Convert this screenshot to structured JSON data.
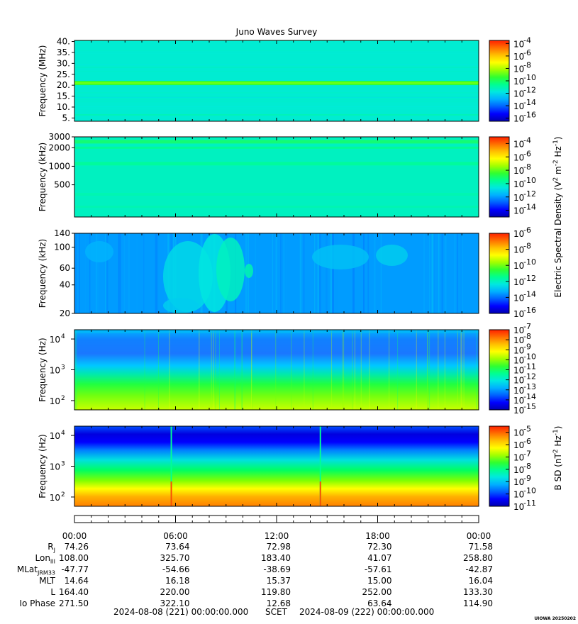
{
  "title": "Juno Waves Survey",
  "credit": "UIOWA 20250202",
  "colors": {
    "spectral": [
      "#0000b0",
      "#0000ff",
      "#0060ff",
      "#00b0ff",
      "#00e8e0",
      "#00ff90",
      "#30ff30",
      "#a0ff00",
      "#ffff00",
      "#ffc000",
      "#ff7000",
      "#ff2000"
    ]
  },
  "chart_data": [
    {
      "type": "heatmap",
      "ylabel": "Frequency (MHz)",
      "yscale": "linear",
      "ylim": [
        3.5,
        40.5
      ],
      "yticks": [
        "5.",
        "10.",
        "15.",
        "20.",
        "25.",
        "30.",
        "35.",
        "40."
      ],
      "ytick_values": [
        5,
        10,
        15,
        20,
        25,
        30,
        35,
        40
      ],
      "cbar_ticks": [
        "10-4",
        "10-6",
        "10-8",
        "10-10",
        "10-12",
        "10-14",
        "10-16"
      ],
      "cbar_exponents": [
        -4,
        -6,
        -8,
        -10,
        -12,
        -14,
        -16
      ],
      "cbar_range": [
        -16.5,
        -3.5
      ],
      "background_level": 0.38,
      "features": "narrow band near 21 MHz"
    },
    {
      "type": "heatmap",
      "ylabel": "Frequency (kHz)",
      "yscale": "log",
      "ylim": [
        150,
        3000
      ],
      "yticks": [
        "3000",
        "2000",
        "1000",
        "500"
      ],
      "ytick_values": [
        3000,
        2000,
        1000,
        500
      ],
      "cbar_ticks": [
        "10-4",
        "10-6",
        "10-8",
        "10-10",
        "10-12",
        "10-14"
      ],
      "cbar_exponents": [
        -4,
        -6,
        -8,
        -10,
        -12,
        -14
      ],
      "cbar_range": [
        -15,
        -3
      ],
      "background_level": 0.4
    },
    {
      "type": "heatmap",
      "ylabel": "Frequency (kHz)",
      "yscale": "log",
      "ylim": [
        20,
        140
      ],
      "yticks": [
        "140",
        "100",
        "60",
        "40",
        "20"
      ],
      "ytick_values": [
        140,
        100,
        60,
        40,
        20
      ],
      "cbar_ticks": [
        "10-6",
        "10-8",
        "10-10",
        "10-12",
        "10-14",
        "10-16"
      ],
      "cbar_exponents": [
        -6,
        -8,
        -10,
        -12,
        -14,
        -16
      ],
      "cbar_range": [
        -16,
        -6
      ],
      "background_level": 0.25
    },
    {
      "type": "heatmap",
      "ylabel": "Frequency (Hz)",
      "yscale": "log",
      "ylim": [
        50,
        20000
      ],
      "yticks_exp": [
        4,
        3,
        2
      ],
      "cbar_ticks": [
        "10-7",
        "10-8",
        "10-9",
        "10-10",
        "10-11",
        "10-12",
        "10-13",
        "10-14",
        "10-15"
      ],
      "cbar_exponents": [
        -7,
        -8,
        -9,
        -10,
        -11,
        -12,
        -13,
        -14,
        -15
      ],
      "cbar_range": [
        -15,
        -7
      ]
    },
    {
      "type": "heatmap",
      "ylabel": "Frequency (Hz)",
      "yscale": "log",
      "ylim": [
        50,
        20000
      ],
      "yticks_exp": [
        4,
        3,
        2
      ],
      "cbar_ticks": [
        "10-5",
        "10-6",
        "10-7",
        "10-8",
        "10-9",
        "10-10",
        "10-11"
      ],
      "cbar_exponents": [
        -5,
        -6,
        -7,
        -8,
        -9,
        -10,
        -11
      ],
      "cbar_range": [
        -11,
        -4.5
      ],
      "spikes_at_hours": [
        5.75,
        14.6
      ]
    }
  ],
  "cbar_label_electric": "Electric Spectral Density (V² m⁻² Hz⁻¹)",
  "cbar_label_electric_parts": [
    "Electric Spectral Density (V",
    "2",
    " m",
    "-2",
    " Hz",
    "-1",
    ")"
  ],
  "cbar_label_magnetic_parts": [
    "B SD (nT",
    "2",
    " Hz",
    "-1",
    ")"
  ],
  "time_axis": {
    "ticks": [
      "00:00",
      "06:00",
      "12:00",
      "18:00",
      "00:00"
    ],
    "range_hours": [
      0,
      24
    ]
  },
  "ephemeris": {
    "rows": [
      {
        "label": "Rj",
        "values": [
          "74.26",
          "73.64",
          "72.98",
          "72.30",
          "71.58"
        ]
      },
      {
        "label": "LonIII",
        "values": [
          "108.00",
          "325.70",
          "183.40",
          "41.07",
          "258.80"
        ]
      },
      {
        "label": "MLatJRM33",
        "values": [
          "-47.77",
          "-54.66",
          "-38.69",
          "-57.61",
          "-42.87"
        ]
      },
      {
        "label": "MLT",
        "values": [
          "14.64",
          "16.18",
          "15.37",
          "15.00",
          "16.04"
        ]
      },
      {
        "label": "L",
        "values": [
          "164.40",
          "220.00",
          "119.80",
          "252.00",
          "133.30"
        ]
      },
      {
        "label": "Io Phase",
        "values": [
          "271.50",
          "322.10",
          "12.68",
          "63.64",
          "114.90"
        ]
      }
    ]
  },
  "footer": {
    "start": "2024-08-08 (221) 00:00:00.000",
    "scet": "SCET",
    "end": "2024-08-09 (222) 00:00:00.000"
  }
}
